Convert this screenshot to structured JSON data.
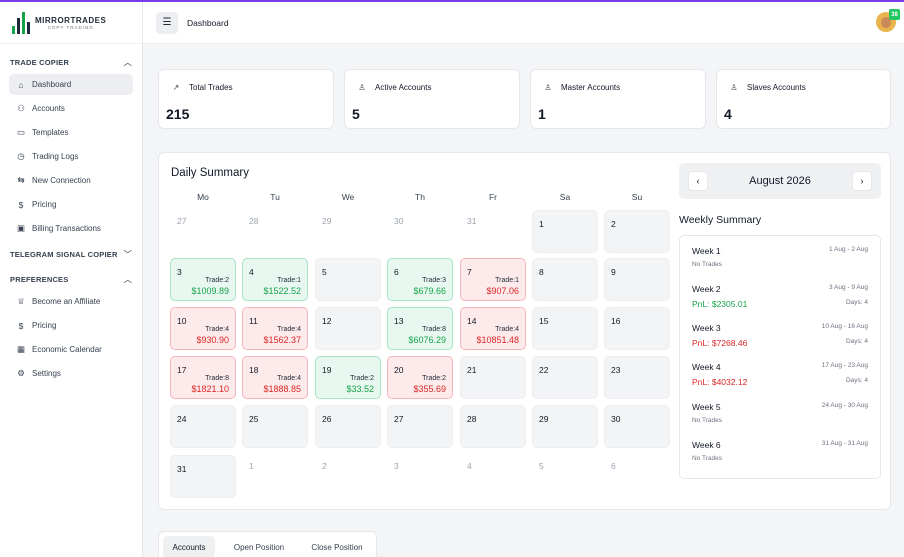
{
  "brand": {
    "name": "MIRRORTRADES",
    "tagline": "COPY TRADING"
  },
  "header": {
    "breadcrumb": "Dashboard",
    "avatar_badge": "38"
  },
  "sidebar": {
    "sections": [
      {
        "title": "TRADE COPIER",
        "items": [
          {
            "label": "Dashboard",
            "icon": "dashboard-icon",
            "glyph": "⌂",
            "active": true
          },
          {
            "label": "Accounts",
            "icon": "accounts-icon",
            "glyph": "⚇"
          },
          {
            "label": "Templates",
            "icon": "templates-icon",
            "glyph": "▭"
          },
          {
            "label": "Trading Logs",
            "icon": "clock-icon",
            "glyph": "◷"
          },
          {
            "label": "New Connection",
            "icon": "connection-icon",
            "glyph": "⇆"
          },
          {
            "label": "Pricing",
            "icon": "dollar-icon",
            "glyph": "$"
          },
          {
            "label": "Billing Transactions",
            "icon": "wallet-icon",
            "glyph": "▣"
          }
        ]
      },
      {
        "title": "TELEGRAM SIGNAL COPIER",
        "items": []
      },
      {
        "title": "PREFERENCES",
        "items": [
          {
            "label": "Become an Affiliate",
            "icon": "trophy-icon",
            "glyph": "♕"
          },
          {
            "label": "Pricing",
            "icon": "dollar-icon",
            "glyph": "$"
          },
          {
            "label": "Economic Calendar",
            "icon": "calendar-icon",
            "glyph": "▦"
          },
          {
            "label": "Settings",
            "icon": "gear-icon",
            "glyph": "⚙"
          }
        ]
      }
    ]
  },
  "stats": [
    {
      "label": "Total Trades",
      "value": "215",
      "icon": "trend-up-icon",
      "glyph": "↗"
    },
    {
      "label": "Active Accounts",
      "value": "5",
      "icon": "user-icon",
      "glyph": "♙"
    },
    {
      "label": "Master Accounts",
      "value": "1",
      "icon": "user-icon",
      "glyph": "♙"
    },
    {
      "label": "Slaves Accounts",
      "value": "4",
      "icon": "user-icon",
      "glyph": "♙"
    }
  ],
  "calendar": {
    "title": "Daily Summary",
    "month": "August 2026",
    "weekdays": [
      "Mo",
      "Tu",
      "We",
      "Th",
      "Fr",
      "Sa",
      "Su"
    ],
    "weeks": [
      [
        {
          "day": "27",
          "type": "empty"
        },
        {
          "day": "28",
          "type": "empty"
        },
        {
          "day": "29",
          "type": "empty"
        },
        {
          "day": "30",
          "type": "empty"
        },
        {
          "day": "31",
          "type": "empty"
        },
        {
          "day": "1",
          "type": "plain"
        },
        {
          "day": "2",
          "type": "plain"
        }
      ],
      [
        {
          "day": "3",
          "type": "green",
          "trade": "Trade:2",
          "amount": "$1009.89"
        },
        {
          "day": "4",
          "type": "green",
          "trade": "Trade:1",
          "amount": "$1522.52"
        },
        {
          "day": "5",
          "type": "plain"
        },
        {
          "day": "6",
          "type": "green",
          "trade": "Trade:3",
          "amount": "$679.66"
        },
        {
          "day": "7",
          "type": "red",
          "trade": "Trade:1",
          "amount": "$907.06"
        },
        {
          "day": "8",
          "type": "plain"
        },
        {
          "day": "9",
          "type": "plain"
        }
      ],
      [
        {
          "day": "10",
          "type": "red",
          "trade": "Trade:4",
          "amount": "$930.90"
        },
        {
          "day": "11",
          "type": "red",
          "trade": "Trade:4",
          "amount": "$1562.37"
        },
        {
          "day": "12",
          "type": "plain"
        },
        {
          "day": "13",
          "type": "green",
          "trade": "Trade:8",
          "amount": "$6076.29"
        },
        {
          "day": "14",
          "type": "red",
          "trade": "Trade:4",
          "amount": "$10851.48"
        },
        {
          "day": "15",
          "type": "plain"
        },
        {
          "day": "16",
          "type": "plain"
        }
      ],
      [
        {
          "day": "17",
          "type": "red",
          "trade": "Trade:8",
          "amount": "$1821.10"
        },
        {
          "day": "18",
          "type": "red",
          "trade": "Trade:4",
          "amount": "$1888.85"
        },
        {
          "day": "19",
          "type": "green",
          "trade": "Trade:2",
          "amount": "$33.52"
        },
        {
          "day": "20",
          "type": "red",
          "trade": "Trade:2",
          "amount": "$355.69"
        },
        {
          "day": "21",
          "type": "plain"
        },
        {
          "day": "22",
          "type": "plain"
        },
        {
          "day": "23",
          "type": "plain"
        }
      ],
      [
        {
          "day": "24",
          "type": "plain"
        },
        {
          "day": "25",
          "type": "plain"
        },
        {
          "day": "26",
          "type": "plain"
        },
        {
          "day": "27",
          "type": "plain"
        },
        {
          "day": "28",
          "type": "plain"
        },
        {
          "day": "29",
          "type": "plain"
        },
        {
          "day": "30",
          "type": "plain"
        }
      ],
      [
        {
          "day": "31",
          "type": "plain"
        },
        {
          "day": "1",
          "type": "empty"
        },
        {
          "day": "2",
          "type": "empty"
        },
        {
          "day": "3",
          "type": "empty"
        },
        {
          "day": "4",
          "type": "empty"
        },
        {
          "day": "5",
          "type": "empty"
        },
        {
          "day": "6",
          "type": "empty"
        }
      ]
    ]
  },
  "weekly": {
    "title": "Weekly Summary",
    "weeks": [
      {
        "name": "Week 1",
        "range": "1 Aug - 2 Aug",
        "note": "No Trades"
      },
      {
        "name": "Week 2",
        "range": "3 Aug - 9 Aug",
        "pnl": "PnL: $2305.01",
        "pnl_sign": "pos",
        "days": "Days: 4"
      },
      {
        "name": "Week 3",
        "range": "10 Aug - 16 Aug",
        "pnl": "PnL: $7268.46",
        "pnl_sign": "neg",
        "days": "Days: 4"
      },
      {
        "name": "Week 4",
        "range": "17 Aug - 23 Aug",
        "pnl": "PnL: $4032.12",
        "pnl_sign": "neg",
        "days": "Days: 4"
      },
      {
        "name": "Week 5",
        "range": "24 Aug - 30 Aug",
        "note": "No Trades"
      },
      {
        "name": "Week 6",
        "range": "31 Aug - 31 Aug",
        "note": "No Trades"
      }
    ]
  },
  "tabs": [
    {
      "label": "Accounts",
      "active": true
    },
    {
      "label": "Open Position"
    },
    {
      "label": "Close Position"
    }
  ],
  "colors": {
    "profit": "#16a34a",
    "loss": "#dc2626",
    "accent": "#7c3aed"
  }
}
